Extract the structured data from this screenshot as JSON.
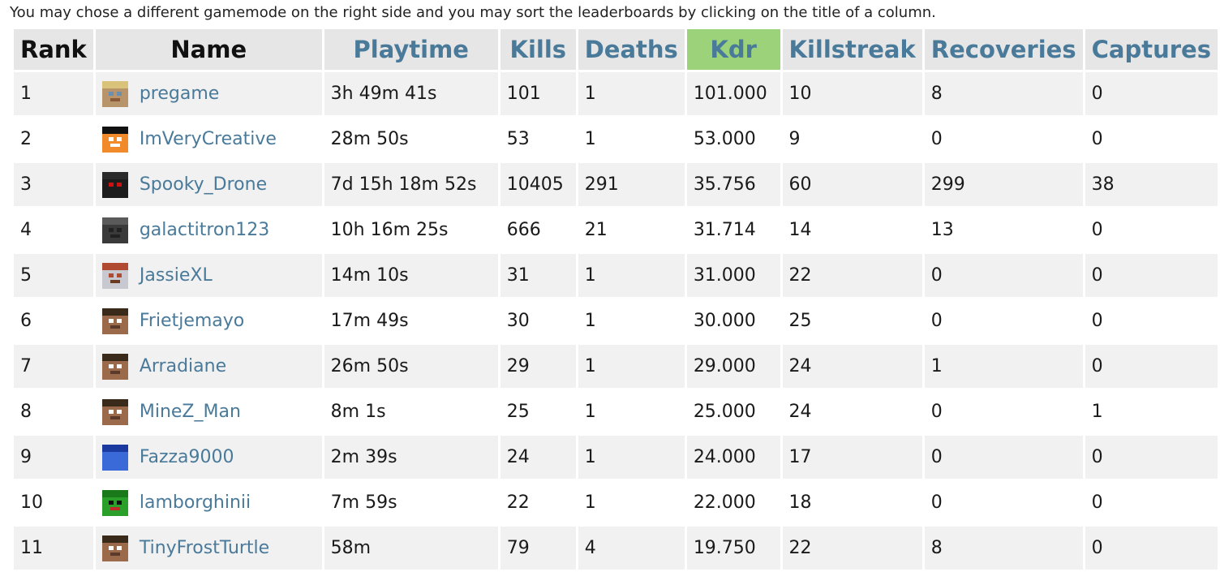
{
  "intro_text": "You may chose a different gamemode on the right side and you may sort the leaderboards by clicking on the title of a column.",
  "columns": {
    "rank": "Rank",
    "name": "Name",
    "playtime": "Playtime",
    "kills": "Kills",
    "deaths": "Deaths",
    "kdr": "Kdr",
    "killstreak": "Killstreak",
    "recoveries": "Recoveries",
    "captures": "Captures"
  },
  "colors": {
    "link": "#4a7a9a",
    "sorted_header": "#9bd27a",
    "header_bg": "#e6e6e6",
    "row_alt": "#f1f1f1"
  },
  "rows": [
    {
      "rank": "1",
      "name": "pregame",
      "playtime": "3h 49m 41s",
      "kills": "101",
      "deaths": "1",
      "kdr": "101.000",
      "killstreak": "10",
      "recoveries": "8",
      "captures": "0",
      "avatar": {
        "skin": "#b8946a",
        "hair": "#d9c27a",
        "eye": "#6a8fb0",
        "mouth": "#8a5a3a"
      }
    },
    {
      "rank": "2",
      "name": "ImVeryCreative",
      "playtime": "28m 50s",
      "kills": "53",
      "deaths": "1",
      "kdr": "53.000",
      "killstreak": "9",
      "recoveries": "0",
      "captures": "0",
      "avatar": {
        "skin": "#f08a2a",
        "hair": "#111111",
        "eye": "#ffffff",
        "mouth": "#ffffff"
      }
    },
    {
      "rank": "3",
      "name": "Spooky_Drone",
      "playtime": "7d 15h 18m 52s",
      "kills": "10405",
      "deaths": "291",
      "kdr": "35.756",
      "killstreak": "60",
      "recoveries": "299",
      "captures": "38",
      "avatar": {
        "skin": "#1c1c1c",
        "hair": "#2a2a2a",
        "eye": "#cc1111",
        "mouth": "#1c1c1c"
      }
    },
    {
      "rank": "4",
      "name": "galactitron123",
      "playtime": "10h 16m 25s",
      "kills": "666",
      "deaths": "21",
      "kdr": "31.714",
      "killstreak": "14",
      "recoveries": "13",
      "captures": "0",
      "avatar": {
        "skin": "#3a3a3a",
        "hair": "#5a5a5a",
        "eye": "#222222",
        "mouth": "#222222"
      }
    },
    {
      "rank": "5",
      "name": "JassieXL",
      "playtime": "14m 10s",
      "kills": "31",
      "deaths": "1",
      "kdr": "31.000",
      "killstreak": "22",
      "recoveries": "0",
      "captures": "0",
      "avatar": {
        "skin": "#c8c8d0",
        "hair": "#b04a30",
        "eye": "#b04a30",
        "mouth": "#6a3a20"
      }
    },
    {
      "rank": "6",
      "name": "Frietjemayo",
      "playtime": "17m 49s",
      "kills": "30",
      "deaths": "1",
      "kdr": "30.000",
      "killstreak": "25",
      "recoveries": "0",
      "captures": "0",
      "avatar": {
        "skin": "#9a6a4a",
        "hair": "#3a2a1a",
        "eye": "#ffffff",
        "mouth": "#5a3a2a"
      }
    },
    {
      "rank": "7",
      "name": "Arradiane",
      "playtime": "26m 50s",
      "kills": "29",
      "deaths": "1",
      "kdr": "29.000",
      "killstreak": "24",
      "recoveries": "1",
      "captures": "0",
      "avatar": {
        "skin": "#9a6a4a",
        "hair": "#3a2a1a",
        "eye": "#ffffff",
        "mouth": "#5a3a2a"
      }
    },
    {
      "rank": "8",
      "name": "MineZ_Man",
      "playtime": "8m 1s",
      "kills": "25",
      "deaths": "1",
      "kdr": "25.000",
      "killstreak": "24",
      "recoveries": "0",
      "captures": "1",
      "avatar": {
        "skin": "#9a6a4a",
        "hair": "#3a2a1a",
        "eye": "#ffffff",
        "mouth": "#5a3a2a"
      }
    },
    {
      "rank": "9",
      "name": "Fazza9000",
      "playtime": "2m 39s",
      "kills": "24",
      "deaths": "1",
      "kdr": "24.000",
      "killstreak": "17",
      "recoveries": "0",
      "captures": "0",
      "avatar": {
        "skin": "#3a6ad8",
        "hair": "#1a3aa0",
        "eye": "#3a6ad8",
        "mouth": "#3a6ad8"
      }
    },
    {
      "rank": "10",
      "name": "lamborghinii",
      "playtime": "7m 59s",
      "kills": "22",
      "deaths": "1",
      "kdr": "22.000",
      "killstreak": "18",
      "recoveries": "0",
      "captures": "0",
      "avatar": {
        "skin": "#2aa02a",
        "hair": "#1a7a1a",
        "eye": "#111111",
        "mouth": "#c02a2a"
      }
    },
    {
      "rank": "11",
      "name": "TinyFrostTurtle",
      "playtime": "58m",
      "kills": "79",
      "deaths": "4",
      "kdr": "19.750",
      "killstreak": "22",
      "recoveries": "8",
      "captures": "0",
      "avatar": {
        "skin": "#9a6a4a",
        "hair": "#3a2a1a",
        "eye": "#ffffff",
        "mouth": "#5a3a2a"
      }
    }
  ]
}
